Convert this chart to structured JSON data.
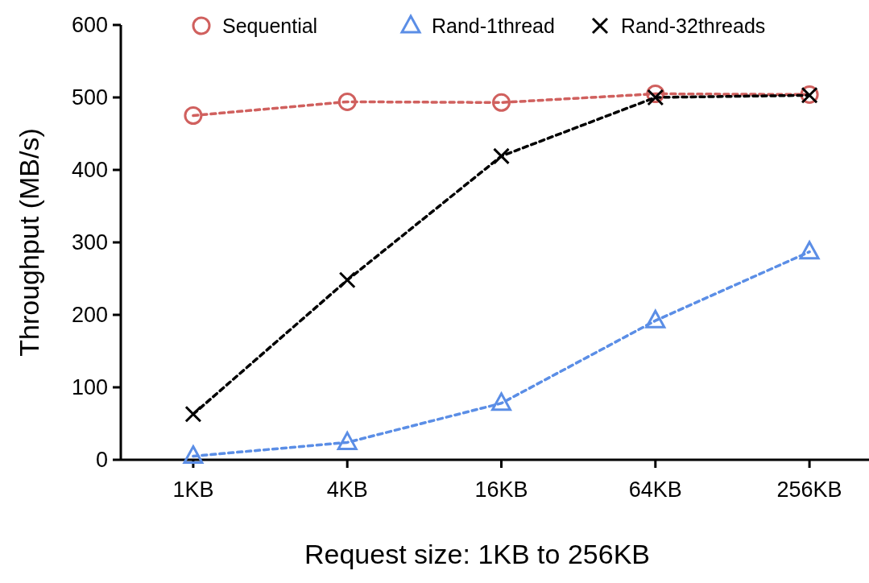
{
  "chart_data": {
    "type": "line",
    "xlabel": "Request size: 1KB to 256KB",
    "ylabel": "Throughput (MB/s)",
    "categories": [
      "1KB",
      "4KB",
      "16KB",
      "64KB",
      "256KB"
    ],
    "ylim": [
      0,
      600
    ],
    "yticks": [
      0,
      100,
      200,
      300,
      400,
      500,
      600
    ],
    "legend": "top",
    "line_style": "dashed",
    "grid": false,
    "series": [
      {
        "name": "Sequential",
        "color": "#d0605e",
        "marker": "circle",
        "values": [
          475,
          494,
          493,
          505,
          504
        ]
      },
      {
        "name": "Rand-1thread",
        "color": "#5b8ee6",
        "marker": "triangle",
        "values": [
          5,
          24,
          78,
          192,
          287
        ]
      },
      {
        "name": "Rand-32threads",
        "color": "#000000",
        "marker": "cross",
        "values": [
          63,
          248,
          419,
          500,
          503
        ]
      }
    ]
  }
}
